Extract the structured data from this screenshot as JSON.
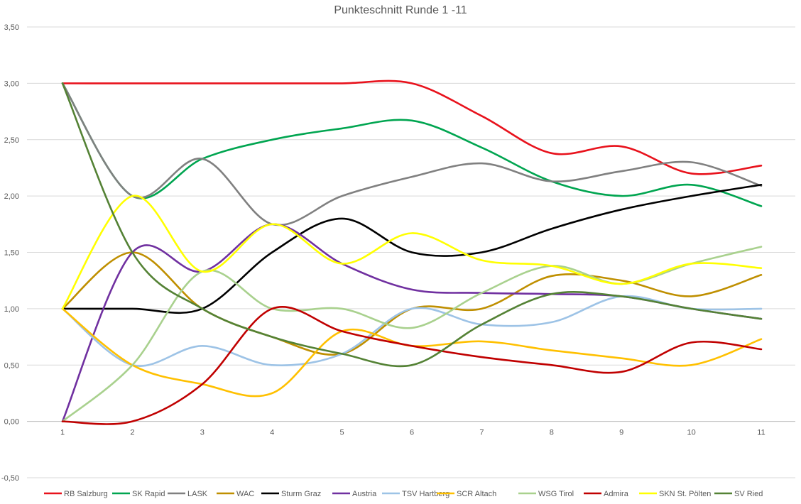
{
  "chart_data": {
    "type": "line",
    "title": "Punkteschnitt Runde 1 -11",
    "xlabel": "",
    "ylabel": "",
    "categories": [
      "1",
      "2",
      "3",
      "4",
      "5",
      "6",
      "7",
      "8",
      "9",
      "10",
      "11"
    ],
    "y_ticks": [
      "-0,50",
      "0,00",
      "0,50",
      "1,00",
      "1,50",
      "2,00",
      "2,50",
      "3,00",
      "3,50"
    ],
    "ylim": [
      -0.5,
      3.5
    ],
    "grid": true,
    "smooth": true,
    "legend_position": "bottom",
    "series": [
      {
        "name": "RB Salzburg",
        "color": "#e8121c",
        "values": [
          3.0,
          3.0,
          3.0,
          3.0,
          3.0,
          3.0,
          2.71,
          2.38,
          2.44,
          2.2,
          2.27
        ]
      },
      {
        "name": "SK Rapid",
        "color": "#00a550",
        "values": [
          3.0,
          2.0,
          2.33,
          2.5,
          2.6,
          2.67,
          2.43,
          2.13,
          2.0,
          2.1,
          1.91
        ]
      },
      {
        "name": "LASK",
        "color": "#808080",
        "values": [
          3.0,
          2.0,
          2.33,
          1.75,
          2.0,
          2.17,
          2.29,
          2.13,
          2.22,
          2.3,
          2.09
        ]
      },
      {
        "name": "WAC",
        "color": "#bf8f00",
        "values": [
          1.0,
          1.5,
          1.0,
          0.75,
          0.6,
          1.0,
          1.0,
          1.29,
          1.25,
          1.11,
          1.3
        ]
      },
      {
        "name": "Sturm Graz",
        "color": "#000000",
        "values": [
          1.0,
          1.0,
          1.0,
          1.5,
          1.8,
          1.5,
          1.5,
          1.71,
          1.88,
          2.0,
          2.1
        ]
      },
      {
        "name": "Austria",
        "color": "#7030a0",
        "values": [
          0.0,
          1.5,
          1.33,
          1.75,
          1.4,
          1.17,
          1.14,
          1.13,
          1.11,
          1.0,
          0.91
        ]
      },
      {
        "name": "TSV Hartberg",
        "color": "#9dc3e6",
        "values": [
          1.0,
          0.5,
          0.67,
          0.5,
          0.6,
          1.0,
          0.86,
          0.88,
          1.11,
          1.0,
          1.0
        ]
      },
      {
        "name": "SCR Altach",
        "color": "#ffc000",
        "values": [
          1.0,
          0.5,
          0.33,
          0.25,
          0.8,
          0.67,
          0.71,
          0.63,
          0.56,
          0.5,
          0.73
        ]
      },
      {
        "name": "WSG Tirol",
        "color": "#a9d18e",
        "values": [
          0.0,
          0.5,
          1.33,
          1.0,
          1.0,
          0.83,
          1.14,
          1.38,
          1.22,
          1.4,
          1.55
        ]
      },
      {
        "name": "Admira",
        "color": "#c00000",
        "values": [
          0.0,
          0.0,
          0.33,
          1.0,
          0.8,
          0.67,
          0.57,
          0.5,
          0.44,
          0.7,
          0.64
        ]
      },
      {
        "name": "SKN St. Pölten",
        "color": "#ffff00",
        "values": [
          1.0,
          2.0,
          1.33,
          1.75,
          1.4,
          1.67,
          1.43,
          1.38,
          1.22,
          1.4,
          1.36
        ]
      },
      {
        "name": "SV Ried",
        "color": "#548235",
        "values": [
          3.0,
          1.5,
          1.0,
          0.75,
          0.6,
          0.5,
          0.86,
          1.13,
          1.11,
          1.0,
          0.91
        ]
      }
    ]
  }
}
